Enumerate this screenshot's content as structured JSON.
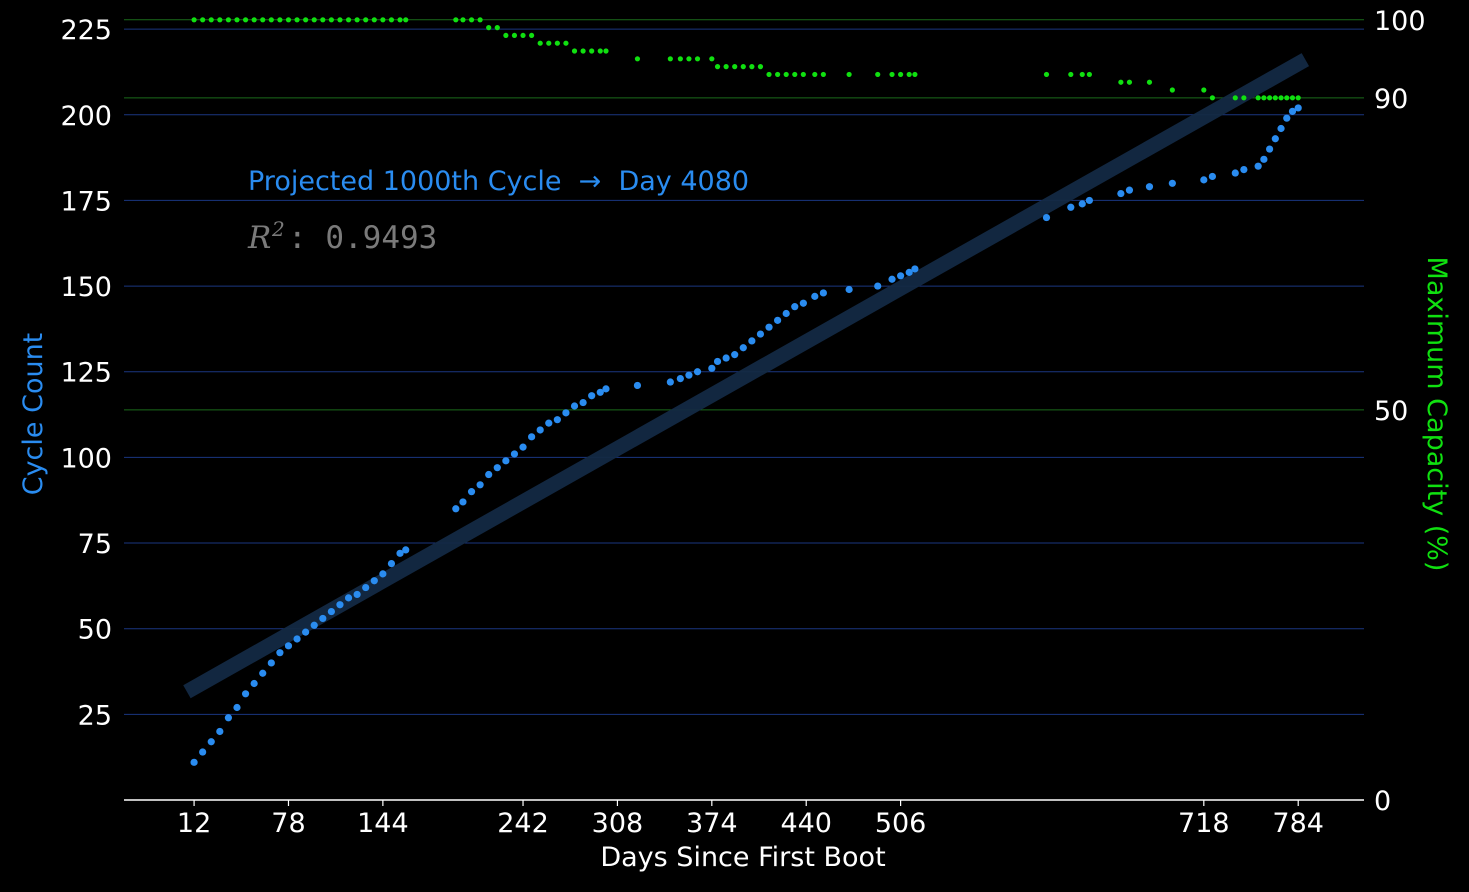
{
  "chart_data": {
    "type": "scatter",
    "xlabel": "Days Since First Boot",
    "ylabel_left": "Cycle Count",
    "ylabel_right": "Maximum Capacity (%)",
    "xlim": [
      -37,
      830
    ],
    "ylim_left": [
      0,
      230
    ],
    "ylim_right": [
      0,
      101
    ],
    "x_ticks": [
      12,
      78,
      144,
      242,
      308,
      374,
      440,
      506,
      718,
      784
    ],
    "y_left_ticks": [
      25,
      50,
      75,
      100,
      125,
      150,
      175,
      200,
      225
    ],
    "y_right_ticks": [
      0,
      50,
      90,
      100
    ],
    "grid": true,
    "colors": {
      "cycle": "#2a8cf0",
      "capacity": "#10e010",
      "trend": "#142a44",
      "grid_left": "#1a3680",
      "grid_right": "#1a6a1a"
    },
    "annotation_text": "Projected 1000th Cycle  →  Day 4080",
    "r2_symbol": "R",
    "r2_exp": "2",
    "r2_value": ": 0.9493",
    "trendline": {
      "x": [
        7,
        789
      ],
      "y": [
        31.6,
        216.1
      ]
    },
    "series": [
      {
        "name": "Cycle Count",
        "axis": "left",
        "style": "markers",
        "points": [
          [
            12,
            11
          ],
          [
            18,
            14
          ],
          [
            24,
            17
          ],
          [
            30,
            20
          ],
          [
            36,
            24
          ],
          [
            42,
            27
          ],
          [
            48,
            31
          ],
          [
            54,
            34
          ],
          [
            60,
            37
          ],
          [
            66,
            40
          ],
          [
            72,
            43
          ],
          [
            78,
            45
          ],
          [
            84,
            47
          ],
          [
            90,
            49
          ],
          [
            96,
            51
          ],
          [
            102,
            53
          ],
          [
            108,
            55
          ],
          [
            114,
            57
          ],
          [
            120,
            59
          ],
          [
            126,
            60
          ],
          [
            132,
            62
          ],
          [
            138,
            64
          ],
          [
            144,
            66
          ],
          [
            150,
            69
          ],
          [
            156,
            72
          ],
          [
            160,
            73
          ],
          [
            195,
            85
          ],
          [
            200,
            87
          ],
          [
            206,
            90
          ],
          [
            212,
            92
          ],
          [
            218,
            95
          ],
          [
            224,
            97
          ],
          [
            230,
            99
          ],
          [
            236,
            101
          ],
          [
            242,
            103
          ],
          [
            248,
            106
          ],
          [
            254,
            108
          ],
          [
            260,
            110
          ],
          [
            266,
            111
          ],
          [
            272,
            113
          ],
          [
            278,
            115
          ],
          [
            284,
            116
          ],
          [
            290,
            118
          ],
          [
            296,
            119
          ],
          [
            300,
            120
          ],
          [
            322,
            121
          ],
          [
            345,
            122
          ],
          [
            352,
            123
          ],
          [
            358,
            124
          ],
          [
            364,
            125
          ],
          [
            374,
            126
          ],
          [
            378,
            128
          ],
          [
            384,
            129
          ],
          [
            390,
            130
          ],
          [
            396,
            132
          ],
          [
            402,
            134
          ],
          [
            408,
            136
          ],
          [
            414,
            138
          ],
          [
            420,
            140
          ],
          [
            426,
            142
          ],
          [
            432,
            144
          ],
          [
            438,
            145
          ],
          [
            446,
            147
          ],
          [
            452,
            148
          ],
          [
            470,
            149
          ],
          [
            490,
            150
          ],
          [
            500,
            152
          ],
          [
            506,
            153
          ],
          [
            512,
            154
          ],
          [
            516,
            155
          ],
          [
            608,
            170
          ],
          [
            625,
            173
          ],
          [
            633,
            174
          ],
          [
            638,
            175
          ],
          [
            660,
            177
          ],
          [
            666,
            178
          ],
          [
            680,
            179
          ],
          [
            696,
            180
          ],
          [
            718,
            181
          ],
          [
            724,
            182
          ],
          [
            740,
            183
          ],
          [
            746,
            184
          ],
          [
            756,
            185
          ],
          [
            760,
            187
          ],
          [
            764,
            190
          ],
          [
            768,
            193
          ],
          [
            772,
            196
          ],
          [
            776,
            199
          ],
          [
            780,
            201
          ],
          [
            784,
            202
          ]
        ]
      },
      {
        "name": "Maximum Capacity (%)",
        "axis": "right",
        "style": "markers",
        "points": [
          [
            12,
            100
          ],
          [
            18,
            100
          ],
          [
            24,
            100
          ],
          [
            30,
            100
          ],
          [
            36,
            100
          ],
          [
            42,
            100
          ],
          [
            48,
            100
          ],
          [
            54,
            100
          ],
          [
            60,
            100
          ],
          [
            66,
            100
          ],
          [
            72,
            100
          ],
          [
            78,
            100
          ],
          [
            84,
            100
          ],
          [
            90,
            100
          ],
          [
            96,
            100
          ],
          [
            102,
            100
          ],
          [
            108,
            100
          ],
          [
            114,
            100
          ],
          [
            120,
            100
          ],
          [
            126,
            100
          ],
          [
            132,
            100
          ],
          [
            138,
            100
          ],
          [
            144,
            100
          ],
          [
            150,
            100
          ],
          [
            156,
            100
          ],
          [
            160,
            100
          ],
          [
            195,
            100
          ],
          [
            200,
            100
          ],
          [
            206,
            100
          ],
          [
            212,
            100
          ],
          [
            218,
            99
          ],
          [
            224,
            99
          ],
          [
            230,
            98
          ],
          [
            236,
            98
          ],
          [
            242,
            98
          ],
          [
            248,
            98
          ],
          [
            254,
            97
          ],
          [
            260,
            97
          ],
          [
            266,
            97
          ],
          [
            272,
            97
          ],
          [
            278,
            96
          ],
          [
            284,
            96
          ],
          [
            290,
            96
          ],
          [
            296,
            96
          ],
          [
            300,
            96
          ],
          [
            322,
            95
          ],
          [
            345,
            95
          ],
          [
            352,
            95
          ],
          [
            358,
            95
          ],
          [
            364,
            95
          ],
          [
            374,
            95
          ],
          [
            378,
            94
          ],
          [
            384,
            94
          ],
          [
            390,
            94
          ],
          [
            396,
            94
          ],
          [
            402,
            94
          ],
          [
            408,
            94
          ],
          [
            414,
            93
          ],
          [
            420,
            93
          ],
          [
            426,
            93
          ],
          [
            432,
            93
          ],
          [
            438,
            93
          ],
          [
            446,
            93
          ],
          [
            452,
            93
          ],
          [
            470,
            93
          ],
          [
            490,
            93
          ],
          [
            500,
            93
          ],
          [
            506,
            93
          ],
          [
            512,
            93
          ],
          [
            516,
            93
          ],
          [
            608,
            93
          ],
          [
            625,
            93
          ],
          [
            633,
            93
          ],
          [
            638,
            93
          ],
          [
            660,
            92
          ],
          [
            666,
            92
          ],
          [
            680,
            92
          ],
          [
            696,
            91
          ],
          [
            718,
            91
          ],
          [
            724,
            90
          ],
          [
            740,
            90
          ],
          [
            746,
            90
          ],
          [
            756,
            90
          ],
          [
            760,
            90
          ],
          [
            764,
            90
          ],
          [
            768,
            90
          ],
          [
            772,
            90
          ],
          [
            776,
            90
          ],
          [
            780,
            90
          ],
          [
            784,
            90
          ]
        ]
      }
    ]
  }
}
